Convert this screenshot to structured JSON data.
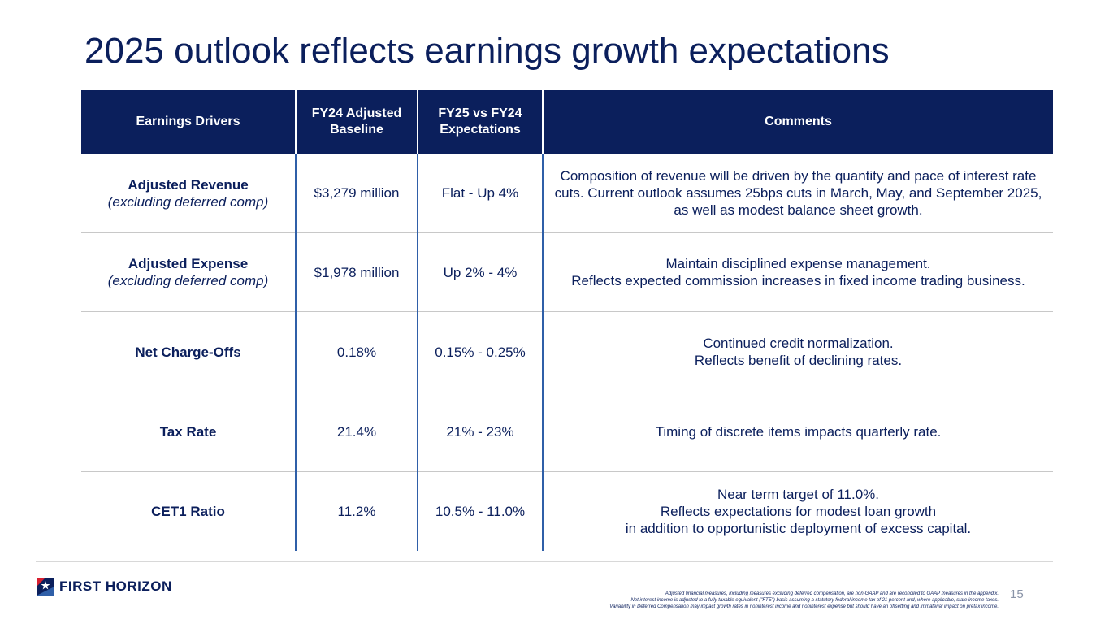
{
  "slide": {
    "title": "2025 outlook reflects earnings growth expectations",
    "page_number": "15"
  },
  "table": {
    "headers": [
      "Earnings Drivers",
      "FY24 Adjusted Baseline",
      "FY25 vs FY24 Expectations",
      "Comments"
    ],
    "rows": [
      {
        "driver": "Adjusted Revenue",
        "driver_sub": "(excluding deferred comp)",
        "baseline": "$3,279 million",
        "expectation": "Flat - Up 4%",
        "comment": [
          "Composition of revenue will be driven by the quantity and pace of interest rate cuts. Current outlook assumes 25bps cuts in March, May, and September 2025, as well as modest balance sheet growth."
        ]
      },
      {
        "driver": "Adjusted Expense",
        "driver_sub": "(excluding deferred comp)",
        "baseline": "$1,978 million",
        "expectation": "Up 2% - 4%",
        "comment": [
          "Maintain disciplined expense management.",
          "Reflects expected commission increases in fixed income trading business."
        ]
      },
      {
        "driver": "Net Charge-Offs",
        "driver_sub": "",
        "baseline": "0.18%",
        "expectation": "0.15% - 0.25%",
        "comment": [
          "Continued credit normalization.",
          "Reflects benefit of declining rates."
        ]
      },
      {
        "driver": "Tax Rate",
        "driver_sub": "",
        "baseline": "21.4%",
        "expectation": "21% - 23%",
        "comment": [
          "Timing of discrete items impacts quarterly rate."
        ]
      },
      {
        "driver": "CET1 Ratio",
        "driver_sub": "",
        "baseline": "11.2%",
        "expectation": "10.5% - 11.0%",
        "comment": [
          "Near term target of 11.0%.",
          "Reflects expectations for modest loan growth",
          "in addition to opportunistic deployment of excess capital."
        ]
      }
    ]
  },
  "footer": {
    "logo_text": "FIRST HORIZON",
    "logo_icon": "first-horizon-flag-icon",
    "disclaimer": [
      "Adjusted financial measures, including measures excluding deferred compensation, are non-GAAP and are reconciled to GAAP measures in the appendix.",
      "Net interest income is adjusted to a fully taxable equivalent (\"FTE\") basis assuming a statutory federal income tax of 21 percent and, where applicable, state income taxes.",
      "Variability in Deferred Compensation may impact growth rates in noninterest income and noninterest expense but should have an offsetting and immaterial impact on pretax income."
    ]
  },
  "colors": {
    "navy": "#0b1f5c",
    "accent_blue": "#2f5fa8",
    "logo_red": "#d71f30",
    "rule_gray": "#c8c8c8"
  }
}
